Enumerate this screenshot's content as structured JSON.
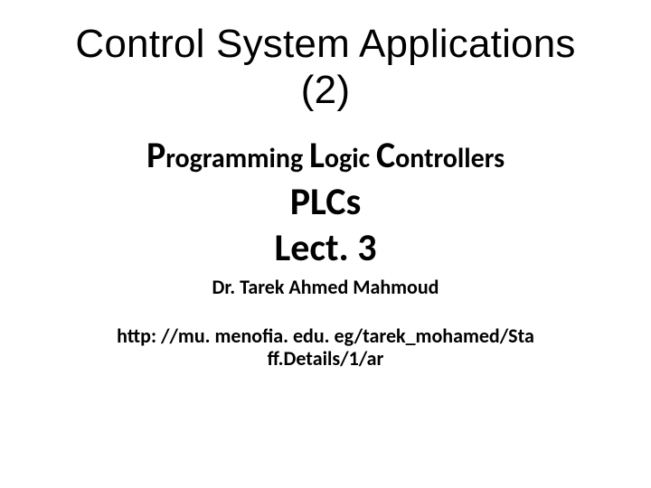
{
  "slide": {
    "background_color": "#ffffff",
    "text_color": "#000000",
    "title_line1": "Control System Applications",
    "title_line2": "(2)",
    "subtitle_parts": {
      "p_cap": "P",
      "p_rest": "rogramming ",
      "l_cap": "L",
      "l_rest": "ogic ",
      "c_cap": "C",
      "c_rest": "ontrollers"
    },
    "acronym": "PLCs",
    "lecture": "Lect. 3",
    "author": "Dr. Tarek Ahmed Mahmoud",
    "url_line1": "http: //mu. menofia. edu. eg/tarek_mohamed/Sta",
    "url_line2": "ff.Details/1/ar",
    "fonts": {
      "title_family": "Arial",
      "body_family": "Calibri",
      "title_size_pt": 33,
      "subtitle_small_size_pt": 22,
      "subtitle_cap_size_pt": 30,
      "plcs_size_pt": 32,
      "author_size_pt": 16,
      "url_size_pt": 16
    }
  }
}
